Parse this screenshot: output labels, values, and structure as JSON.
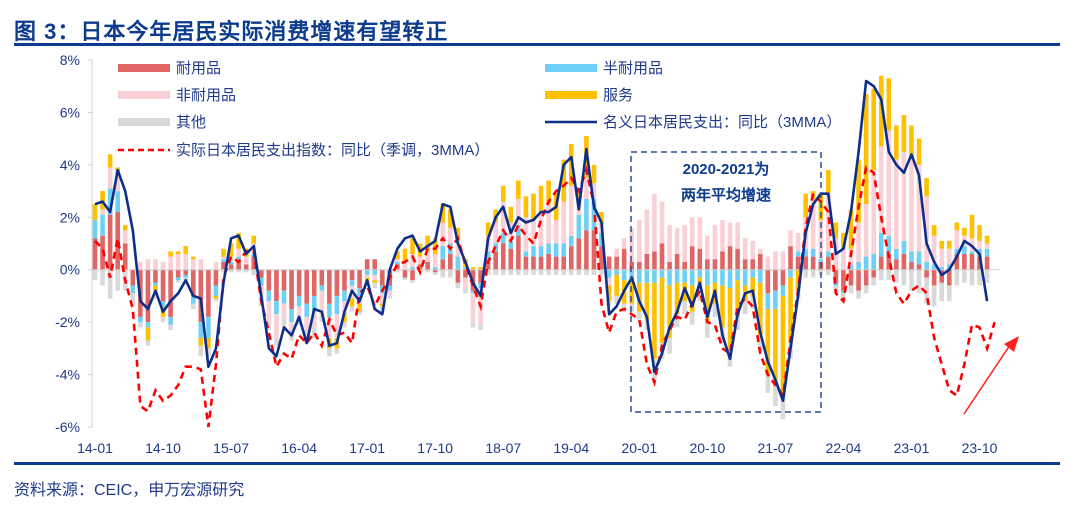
{
  "header": {
    "title": "图 3：日本今年居民实际消费增速有望转正"
  },
  "footer": {
    "source": "资料来源：CEIC，申万宏源研究"
  },
  "colors": {
    "durable": "#e06666",
    "semi_durable": "#6fd0f5",
    "nondurable": "#f9d0d6",
    "services": "#ffc000",
    "other": "#d9d9d9",
    "nominal_line": "#0d2f8a",
    "real_line": "#ff0000",
    "axis_text": "#1f3a8a"
  },
  "chart_data": {
    "type": "bar",
    "title": "日本今年居民实际消费增速有望转正",
    "xlabel": "",
    "ylabel": "",
    "ylim": [
      -6,
      8
    ],
    "yticks": [
      "8%",
      "6%",
      "4%",
      "2%",
      "0%",
      "-2%",
      "-4%",
      "-6%"
    ],
    "ytick_values": [
      8,
      6,
      4,
      2,
      0,
      -2,
      -4,
      -6
    ],
    "xticks": [
      "14-01",
      "14-10",
      "15-07",
      "16-04",
      "17-01",
      "17-10",
      "18-07",
      "19-04",
      "20-01",
      "20-10",
      "21-07",
      "22-04",
      "23-01",
      "23-10"
    ],
    "xtick_index": [
      0,
      9,
      18,
      27,
      36,
      45,
      54,
      63,
      72,
      81,
      90,
      99,
      108,
      117
    ],
    "start": "2014-01",
    "frequency": "monthly",
    "legend": [
      {
        "key": "durable",
        "label": "耐用品",
        "kind": "bar"
      },
      {
        "key": "semi_durable",
        "label": "半耐用品",
        "kind": "bar"
      },
      {
        "key": "nondurable",
        "label": "非耐用品",
        "kind": "bar"
      },
      {
        "key": "services",
        "label": "服务",
        "kind": "bar"
      },
      {
        "key": "other",
        "label": "其他",
        "kind": "bar"
      },
      {
        "key": "nominal",
        "label": "名义日本居民支出：同比（3MMA）",
        "kind": "line"
      },
      {
        "key": "real",
        "label": "实际日本居民支出指数：同比（季调，3MMA）",
        "kind": "dashed-line"
      }
    ],
    "legend_position": "top",
    "annotation": {
      "line1": "2020-2021为",
      "line2": "两年平均增速",
      "range": [
        "2020-02",
        "2021-11"
      ]
    },
    "series": {
      "nominal": [
        2.5,
        2.6,
        2.2,
        3.8,
        3.0,
        1.5,
        -1.2,
        -1.5,
        -0.8,
        -1.6,
        -1.2,
        -0.9,
        -0.4,
        -1.0,
        -1.1,
        -3.7,
        -3.0,
        -0.5,
        1.2,
        1.3,
        0.6,
        0.9,
        -1.0,
        -3.0,
        -3.3,
        -2.2,
        -2.5,
        -1.8,
        -2.8,
        -1.5,
        -1.6,
        -2.9,
        -2.8,
        -1.6,
        -0.8,
        -1.2,
        -0.4,
        -1.5,
        -1.7,
        0.0,
        0.8,
        1.2,
        1.3,
        0.7,
        0.9,
        1.1,
        2.5,
        2.4,
        1.0,
        0.3,
        -0.5,
        -1.0,
        1.2,
        2.0,
        2.4,
        1.4,
        2.0,
        1.8,
        1.9,
        2.2,
        2.2,
        2.4,
        4.0,
        4.3,
        2.3,
        4.6,
        2.4,
        1.8,
        -1.7,
        -1.4,
        -0.8,
        -0.3,
        -1.2,
        -1.8,
        -3.9,
        -3.2,
        -2.2,
        -1.6,
        -0.7,
        -1.4,
        -0.5,
        -1.8,
        -0.8,
        -2.5,
        -3.4,
        -1.7,
        -0.9,
        -0.8,
        -2.4,
        -3.5,
        -4.2,
        -5.0,
        -3.0,
        -1.0,
        1.4,
        2.5,
        2.9,
        2.9,
        0.6,
        0.8,
        2.2,
        4.5,
        7.2,
        7.0,
        6.5,
        4.5,
        4.0,
        3.7,
        4.4,
        3.6,
        1.0,
        0.3,
        -0.2,
        0.0,
        0.5,
        1.1,
        0.9,
        0.6,
        -1.2
      ],
      "real": [
        1.1,
        0.8,
        -0.3,
        1.2,
        -0.4,
        -1.5,
        -5.2,
        -5.4,
        -4.6,
        -5.0,
        -4.8,
        -4.4,
        -3.7,
        -3.7,
        -3.8,
        -6.0,
        -3.6,
        -0.3,
        0.5,
        0.3,
        0.7,
        0.7,
        -1.2,
        -2.4,
        -3.7,
        -3.2,
        -3.4,
        -2.5,
        -2.8,
        -2.4,
        -2.9,
        -1.9,
        -2.5,
        -2.4,
        -2.8,
        -0.9,
        -0.6,
        -1.4,
        -0.8,
        -0.3,
        0.2,
        0.3,
        0.5,
        -0.1,
        0.8,
        0.8,
        1.2,
        0.8,
        1.2,
        0.2,
        -0.6,
        -1.4,
        0.3,
        0.9,
        1.5,
        1.1,
        1.7,
        1.3,
        1.0,
        1.9,
        2.6,
        3.0,
        3.2,
        3.5,
        3.0,
        3.8,
        2.5,
        -1.3,
        -2.4,
        -1.6,
        -1.5,
        -1.7,
        -1.9,
        -3.6,
        -4.3,
        -2.9,
        -2.3,
        -1.8,
        -1.9,
        -1.3,
        -0.8,
        -2.0,
        -2.1,
        -3.0,
        -3.2,
        -1.4,
        -1.1,
        -1.4,
        -3.2,
        -4.0,
        -4.4,
        -4.8,
        -2.7,
        -0.8,
        1.6,
        2.9,
        2.6,
        2.2,
        -0.9,
        -1.2,
        0.6,
        2.4,
        3.9,
        3.7,
        2.0,
        0.5,
        -0.9,
        -1.3,
        -0.8,
        -0.6,
        -0.9,
        -2.6,
        -3.6,
        -4.6,
        -4.8,
        -3.6,
        -2.1,
        -2.2,
        -3.0,
        -2.0
      ],
      "durable": [
        1.2,
        1.3,
        2.1,
        2.2,
        1.0,
        -0.6,
        -1.8,
        -2.0,
        -0.5,
        -1.2,
        -1.8,
        -0.3,
        -0.2,
        -1.0,
        -2.0,
        -1.8,
        -0.6,
        0.3,
        0.2,
        0.4,
        0.2,
        0.5,
        -0.3,
        -0.8,
        -1.2,
        -0.8,
        -1.5,
        -1.0,
        -1.3,
        -1.0,
        -0.6,
        -1.3,
        -1.0,
        -0.8,
        -0.4,
        -0.7,
        0.4,
        0.4,
        -0.6,
        -0.6,
        0.2,
        -0.3,
        -0.4,
        0.2,
        0.3,
        -0.1,
        0.4,
        0.6,
        -0.5,
        -0.3,
        -0.8,
        -0.5,
        0.4,
        0.7,
        1.0,
        0.8,
        1.3,
        0.5,
        0.5,
        0.5,
        0.6,
        0.5,
        0.5,
        0.9,
        1.2,
        1.5,
        1.5,
        0.9,
        0.5,
        0.5,
        0.8,
        0.3,
        0.3,
        0.6,
        0.7,
        1.0,
        0.3,
        0.6,
        0.3,
        0.9,
        0.8,
        0.4,
        0.4,
        0.7,
        0.9,
        0.8,
        0.4,
        0.4,
        0.6,
        -0.9,
        -0.8,
        -0.6,
        0.9,
        0.5,
        0.5,
        0.5,
        0.3,
        0.5,
        -0.5,
        -0.8,
        -0.6,
        -0.8,
        -0.6,
        -0.3,
        0.5,
        0.6,
        0.4,
        0.6,
        0.3,
        0.2,
        -0.3,
        -0.6,
        -0.5,
        -0.6,
        0.6,
        0.6,
        0.6,
        0.5,
        0.5,
        0.0
      ],
      "semi_durable": [
        0.7,
        0.8,
        1.0,
        0.8,
        0.0,
        -0.3,
        -0.2,
        -0.2,
        -0.1,
        -0.2,
        -0.3,
        -0.1,
        -0.1,
        -0.3,
        -0.6,
        -0.8,
        -0.4,
        0.1,
        0.1,
        0.1,
        0.0,
        0.1,
        -0.3,
        -0.4,
        -0.5,
        -0.5,
        -0.5,
        -0.4,
        -0.5,
        -0.6,
        -0.2,
        -0.5,
        -0.7,
        -0.4,
        -0.2,
        -0.3,
        -0.2,
        -0.2,
        -0.3,
        -0.2,
        0.1,
        0.0,
        0.1,
        0.0,
        0.0,
        0.1,
        0.5,
        0.4,
        0.5,
        0.1,
        -0.1,
        -0.2,
        0.3,
        0.3,
        0.4,
        0.3,
        0.4,
        0.2,
        0.4,
        0.4,
        0.4,
        0.5,
        0.5,
        0.4,
        0.9,
        1.2,
        1.2,
        0.5,
        -0.3,
        -0.2,
        -0.4,
        -0.3,
        -0.5,
        -0.5,
        -0.5,
        -0.3,
        -0.6,
        -0.5,
        -0.5,
        -0.6,
        -0.3,
        -0.6,
        -0.5,
        -0.6,
        -0.7,
        -0.4,
        -0.6,
        -0.3,
        -0.5,
        -0.6,
        -0.7,
        -0.4,
        -0.3,
        0.2,
        0.3,
        0.3,
        0.1,
        0.2,
        -0.1,
        -0.1,
        0.2,
        0.3,
        0.5,
        0.6,
        0.9,
        0.7,
        0.4,
        0.5,
        0.4,
        0.5,
        0.3,
        0.2,
        0.1,
        0.2,
        0.2,
        0.3,
        0.1,
        0.3,
        0.3,
        0.3
      ],
      "nondurable": [
        0.0,
        0.2,
        0.8,
        0.6,
        0.5,
        0.0,
        0.3,
        0.4,
        0.4,
        0.3,
        0.5,
        0.6,
        0.6,
        0.4,
        0.4,
        0.0,
        0.3,
        0.1,
        0.2,
        0.3,
        0.3,
        0.4,
        -0.6,
        -0.8,
        -0.9,
        -0.6,
        -0.4,
        -0.3,
        -0.5,
        -0.6,
        -0.9,
        -0.8,
        -0.9,
        -0.5,
        -0.5,
        -0.3,
        -0.1,
        -0.2,
        -0.4,
        -0.2,
        0.1,
        0.3,
        0.5,
        0.3,
        0.4,
        0.5,
        0.9,
        0.6,
        0.6,
        -0.4,
        -1.1,
        -1.4,
        0.6,
        0.8,
        1.2,
        0.7,
        1.0,
        1.3,
        1.0,
        1.3,
        1.5,
        0.9,
        1.6,
        1.9,
        0.4,
        0.8,
        0.6,
        0.3,
        -0.3,
        0.3,
        0.4,
        1.3,
        1.6,
        1.7,
        2.2,
        1.6,
        1.4,
        1.0,
        1.4,
        1.1,
        1.2,
        0.9,
        1.3,
        1.2,
        0.9,
        1.0,
        0.8,
        0.7,
        0.2,
        0.5,
        0.7,
        0.7,
        0.6,
        0.7,
        1.2,
        1.9,
        1.5,
        2.2,
        1.2,
        0.8,
        0.6,
        1.5,
        2.0,
        3.2,
        3.3,
        4.0,
        3.4,
        3.4,
        3.5,
        3.3,
        2.5,
        1.1,
        0.7,
        0.6,
        0.7,
        0.4,
        0.5,
        0.3,
        0.2,
        0.2
      ],
      "services": [
        0.6,
        0.7,
        0.5,
        0.3,
        0.2,
        0.0,
        0.0,
        -0.5,
        -0.2,
        -0.4,
        0.2,
        0.1,
        0.3,
        0.1,
        -0.3,
        -0.4,
        -0.1,
        0.3,
        0.5,
        0.6,
        0.3,
        0.3,
        0.0,
        0.0,
        0.0,
        0.0,
        0.0,
        0.0,
        0.0,
        0.0,
        0.0,
        -0.4,
        -0.4,
        -0.3,
        -0.3,
        -0.3,
        -0.2,
        -0.1,
        -0.1,
        0.0,
        0.3,
        0.5,
        0.6,
        0.5,
        0.6,
        0.6,
        0.7,
        0.7,
        0.5,
        0.3,
        0.1,
        0.1,
        0.5,
        0.5,
        0.6,
        0.6,
        0.7,
        0.8,
        1.0,
        1.0,
        0.9,
        1.0,
        1.6,
        1.6,
        0.6,
        1.6,
        0.7,
        0.5,
        -0.6,
        -0.8,
        -0.9,
        -1.0,
        -1.1,
        -1.4,
        -2.9,
        -2.5,
        -2.0,
        -1.2,
        -0.7,
        -1.0,
        -0.5,
        -1.4,
        -0.8,
        -1.6,
        -2.3,
        -1.4,
        -0.6,
        -0.7,
        -2.0,
        -2.5,
        -2.9,
        -3.8,
        -2.5,
        -0.8,
        0.9,
        0.3,
        1.0,
        0.9,
        0.6,
        0.6,
        1.5,
        2.4,
        4.2,
        3.1,
        2.7,
        2.0,
        1.3,
        1.4,
        1.3,
        1.0,
        0.7,
        0.4,
        0.3,
        0.3,
        0.3,
        0.3,
        0.9,
        0.6,
        0.3,
        0.0
      ],
      "other": [
        -0.4,
        -0.6,
        -1.1,
        -0.8,
        -0.8,
        -0.5,
        -0.2,
        -0.2,
        -0.3,
        -0.2,
        -0.2,
        -0.1,
        -0.1,
        -0.2,
        -0.4,
        -0.3,
        -0.1,
        -0.1,
        -0.1,
        -0.1,
        -0.1,
        -0.2,
        -0.2,
        -0.3,
        -0.3,
        -0.3,
        -0.3,
        -0.4,
        -0.5,
        -0.4,
        -0.3,
        -0.3,
        -0.2,
        -0.2,
        -0.2,
        -0.1,
        -0.1,
        -0.2,
        -0.2,
        -0.1,
        -0.1,
        -0.1,
        -0.1,
        -0.1,
        -0.1,
        -0.1,
        -0.3,
        -0.3,
        -0.2,
        -0.2,
        -0.2,
        -0.2,
        -0.2,
        -0.2,
        -0.2,
        -0.2,
        -0.2,
        -0.2,
        -0.2,
        -0.2,
        -0.2,
        -0.2,
        -0.2,
        -0.2,
        -0.2,
        -0.2,
        -0.2,
        -0.2,
        -0.2,
        -0.3,
        -0.3,
        -0.3,
        -0.3,
        -0.4,
        -0.8,
        -0.6,
        -0.6,
        -0.5,
        -0.5,
        -0.5,
        -0.4,
        -0.6,
        -0.5,
        -0.6,
        -0.7,
        -0.5,
        -0.5,
        -0.5,
        -0.6,
        -0.7,
        -0.8,
        -0.9,
        -0.6,
        -0.3,
        -0.3,
        -0.3,
        -0.2,
        -0.2,
        -0.3,
        -0.3,
        -0.3,
        -0.3,
        -0.3,
        -0.3,
        -0.4,
        -0.4,
        -0.5,
        -0.6,
        -0.8,
        -0.9,
        -1.0,
        -0.8,
        -0.7,
        -0.6,
        -0.6,
        -0.5,
        -0.6,
        -0.6,
        -0.5,
        -0.3
      ]
    }
  }
}
